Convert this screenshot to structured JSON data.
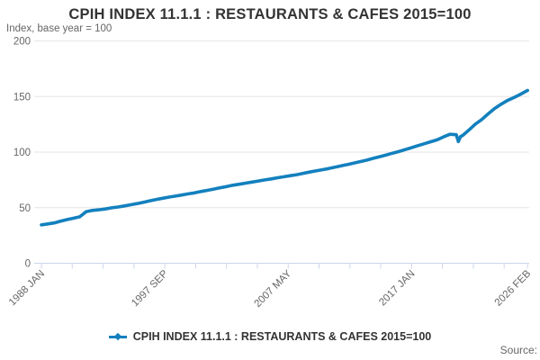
{
  "header": {
    "title": "CPIH INDEX 11.1.1 : RESTAURANTS & CAFES 2015=100",
    "subtitle": "Index, base year = 100"
  },
  "legend": {
    "label": "CPIH INDEX 11.1.1 : RESTAURANTS & CAFES 2015=100"
  },
  "source": {
    "label": "Source:"
  },
  "colors": {
    "line": "#1380be",
    "grid": "#e6e6e6",
    "axis": "#ccd6eb",
    "tick_text": "#666666",
    "title_text": "#333333"
  },
  "chart_data": {
    "type": "line",
    "title": "CPIH INDEX 11.1.1 : RESTAURANTS & CAFES 2015=100",
    "subtitle": "Index, base year = 100",
    "ylabel": "Index, base year = 100",
    "ylim": [
      0,
      200
    ],
    "yticks": [
      0,
      50,
      100,
      150,
      200
    ],
    "grid": true,
    "legend_position": "bottom",
    "x_start": "1988-01",
    "x_end": "2026-02",
    "xtick_labels": [
      "1988 JAN",
      "1997 SEP",
      "2007 MAY",
      "2017 JAN",
      "2026 FEB"
    ],
    "xtick_label_months": [
      0,
      116,
      232,
      348,
      457
    ],
    "minor_tick_months": [
      0,
      29,
      58,
      87,
      116,
      145,
      174,
      203,
      232,
      261,
      290,
      319,
      348,
      377,
      406,
      435,
      457
    ],
    "series": [
      {
        "name": "CPIH INDEX 11.1.1 : RESTAURANTS & CAFES 2015=100",
        "points": [
          [
            "1988-01",
            34.5
          ],
          [
            "1988-07",
            35.4
          ],
          [
            "1989-01",
            36.3
          ],
          [
            "1989-07",
            37.8
          ],
          [
            "1990-01",
            39.3
          ],
          [
            "1990-07",
            40.5
          ],
          [
            "1991-01",
            41.8
          ],
          [
            "1991-07",
            46.3
          ],
          [
            "1992-01",
            47.5
          ],
          [
            "1992-07",
            48.1
          ],
          [
            "1993-01",
            48.8
          ],
          [
            "1993-07",
            49.9
          ],
          [
            "1994-01",
            50.6
          ],
          [
            "1994-07",
            51.6
          ],
          [
            "1995-01",
            52.6
          ],
          [
            "1995-07",
            53.7
          ],
          [
            "1996-01",
            54.9
          ],
          [
            "1996-07",
            56.2
          ],
          [
            "1997-01",
            57.4
          ],
          [
            "1997-07",
            58.5
          ],
          [
            "1998-01",
            59.5
          ],
          [
            "1998-07",
            60.4
          ],
          [
            "1999-01",
            61.4
          ],
          [
            "1999-07",
            62.4
          ],
          [
            "2000-01",
            63.3
          ],
          [
            "2000-07",
            64.5
          ],
          [
            "2001-01",
            65.6
          ],
          [
            "2001-07",
            66.7
          ],
          [
            "2002-01",
            67.9
          ],
          [
            "2002-07",
            69.0
          ],
          [
            "2003-01",
            70.2
          ],
          [
            "2003-07",
            71.1
          ],
          [
            "2004-01",
            72.1
          ],
          [
            "2004-07",
            73.0
          ],
          [
            "2005-01",
            74.0
          ],
          [
            "2005-07",
            75.0
          ],
          [
            "2006-01",
            75.9
          ],
          [
            "2006-07",
            76.9
          ],
          [
            "2007-01",
            77.8
          ],
          [
            "2007-07",
            78.8
          ],
          [
            "2008-01",
            79.7
          ],
          [
            "2008-07",
            80.9
          ],
          [
            "2009-01",
            82.0
          ],
          [
            "2009-07",
            83.1
          ],
          [
            "2010-01",
            84.1
          ],
          [
            "2010-07",
            85.2
          ],
          [
            "2011-01",
            86.4
          ],
          [
            "2011-07",
            87.7
          ],
          [
            "2012-01",
            88.9
          ],
          [
            "2012-07",
            90.2
          ],
          [
            "2013-01",
            91.5
          ],
          [
            "2013-07",
            92.8
          ],
          [
            "2014-01",
            94.4
          ],
          [
            "2014-07",
            95.9
          ],
          [
            "2015-01",
            97.4
          ],
          [
            "2015-07",
            99.0
          ],
          [
            "2016-01",
            100.5
          ],
          [
            "2016-07",
            102.3
          ],
          [
            "2017-01",
            104.0
          ],
          [
            "2017-07",
            105.8
          ],
          [
            "2018-01",
            107.5
          ],
          [
            "2018-07",
            109.3
          ],
          [
            "2019-01",
            111.0
          ],
          [
            "2019-07",
            113.7
          ],
          [
            "2020-01",
            116.0
          ],
          [
            "2020-07",
            115.6
          ],
          [
            "2020-09",
            109.5
          ],
          [
            "2020-11",
            114.0
          ],
          [
            "2021-01",
            115.0
          ],
          [
            "2021-07",
            120.0
          ],
          [
            "2022-01",
            125.3
          ],
          [
            "2022-07",
            129.3
          ],
          [
            "2023-01",
            134.4
          ],
          [
            "2023-07",
            139.2
          ],
          [
            "2024-01",
            143.0
          ],
          [
            "2024-07",
            146.4
          ],
          [
            "2025-01",
            149.0
          ],
          [
            "2025-07",
            151.8
          ],
          [
            "2026-01",
            155.0
          ],
          [
            "2026-02",
            155.5
          ]
        ]
      }
    ]
  }
}
